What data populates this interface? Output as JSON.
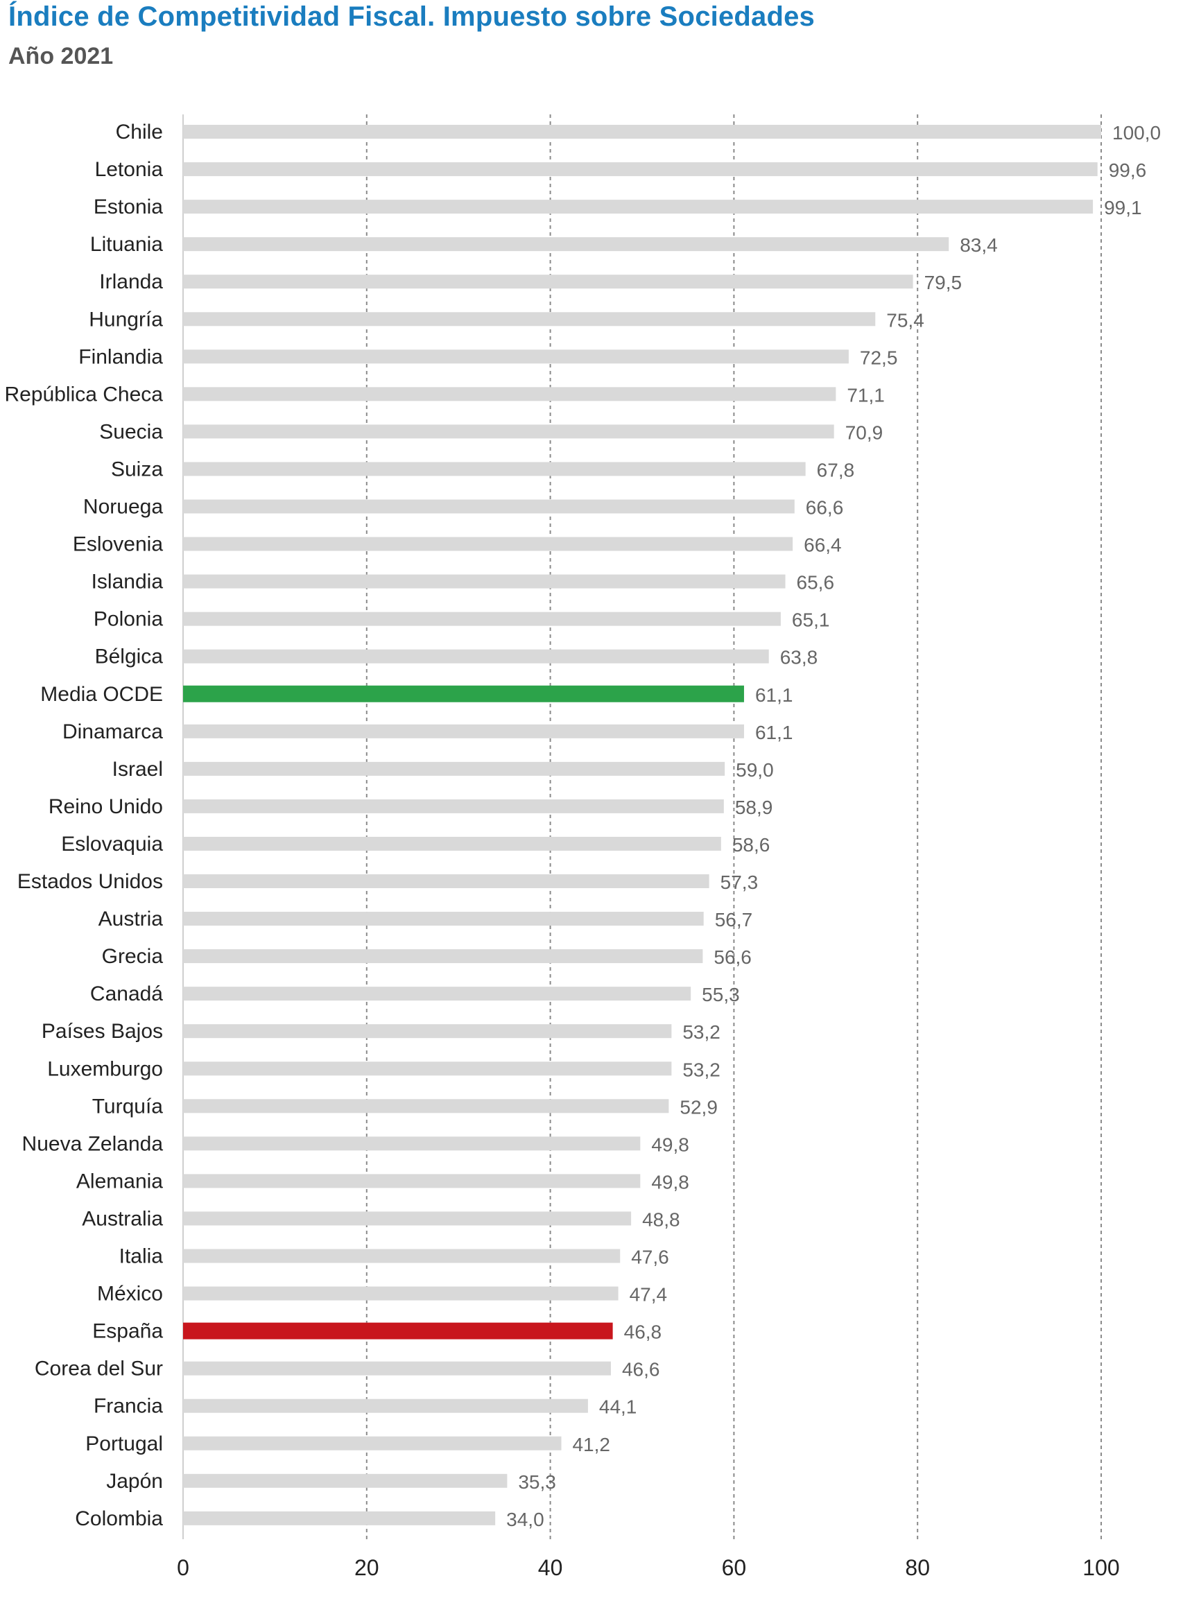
{
  "chart_data": {
    "type": "bar",
    "orientation": "horizontal",
    "title": "Índice de Competitividad Fiscal. Impuesto sobre Sociedades",
    "subtitle": "Año 2021",
    "xlabel": "",
    "ylabel": "",
    "xlim": [
      0,
      100
    ],
    "x_ticks": [
      "0",
      "20",
      "40",
      "60",
      "80",
      "100"
    ],
    "grid": "vertical dashed",
    "colors": {
      "default": "#d9d9d9",
      "highlight_average": "#2ca34a",
      "highlight_spain": "#c8161d",
      "title": "#1a7dbf"
    },
    "categories": [
      "Chile",
      "Letonia",
      "Estonia",
      "Lituania",
      "Irlanda",
      "Hungría",
      "Finlandia",
      "República Checa",
      "Suecia",
      "Suiza",
      "Noruega",
      "Eslovenia",
      "Islandia",
      "Polonia",
      "Bélgica",
      "Media OCDE",
      "Dinamarca",
      "Israel",
      "Reino Unido",
      "Eslovaquia",
      "Estados Unidos",
      "Austria",
      "Grecia",
      "Canadá",
      "Países Bajos",
      "Luxemburgo",
      "Turquía",
      "Nueva Zelanda",
      "Alemania",
      "Australia",
      "Italia",
      "México",
      "España",
      "Corea del Sur",
      "Francia",
      "Portugal",
      "Japón",
      "Colombia"
    ],
    "values": [
      100.0,
      99.6,
      99.1,
      83.4,
      79.5,
      75.4,
      72.5,
      71.1,
      70.9,
      67.8,
      66.6,
      66.4,
      65.6,
      65.1,
      63.8,
      61.1,
      61.1,
      59.0,
      58.9,
      58.6,
      57.3,
      56.7,
      56.6,
      55.3,
      53.2,
      53.2,
      52.9,
      49.8,
      49.8,
      48.8,
      47.6,
      47.4,
      46.8,
      46.6,
      44.1,
      41.2,
      35.3,
      34.0
    ],
    "value_labels": [
      "100,0",
      "99,6",
      "99,1",
      "83,4",
      "79,5",
      "75,4",
      "72,5",
      "71,1",
      "70,9",
      "67,8",
      "66,6",
      "66,4",
      "65,6",
      "65,1",
      "63,8",
      "61,1",
      "61,1",
      "59,0",
      "58,9",
      "58,6",
      "57,3",
      "56,7",
      "56,6",
      "55,3",
      "53,2",
      "53,2",
      "52,9",
      "49,8",
      "49,8",
      "48,8",
      "47,6",
      "47,4",
      "46,8",
      "46,6",
      "44,1",
      "41,2",
      "35,3",
      "34,0"
    ],
    "highlights": {
      "Media OCDE": "highlight_average",
      "España": "highlight_spain"
    }
  }
}
